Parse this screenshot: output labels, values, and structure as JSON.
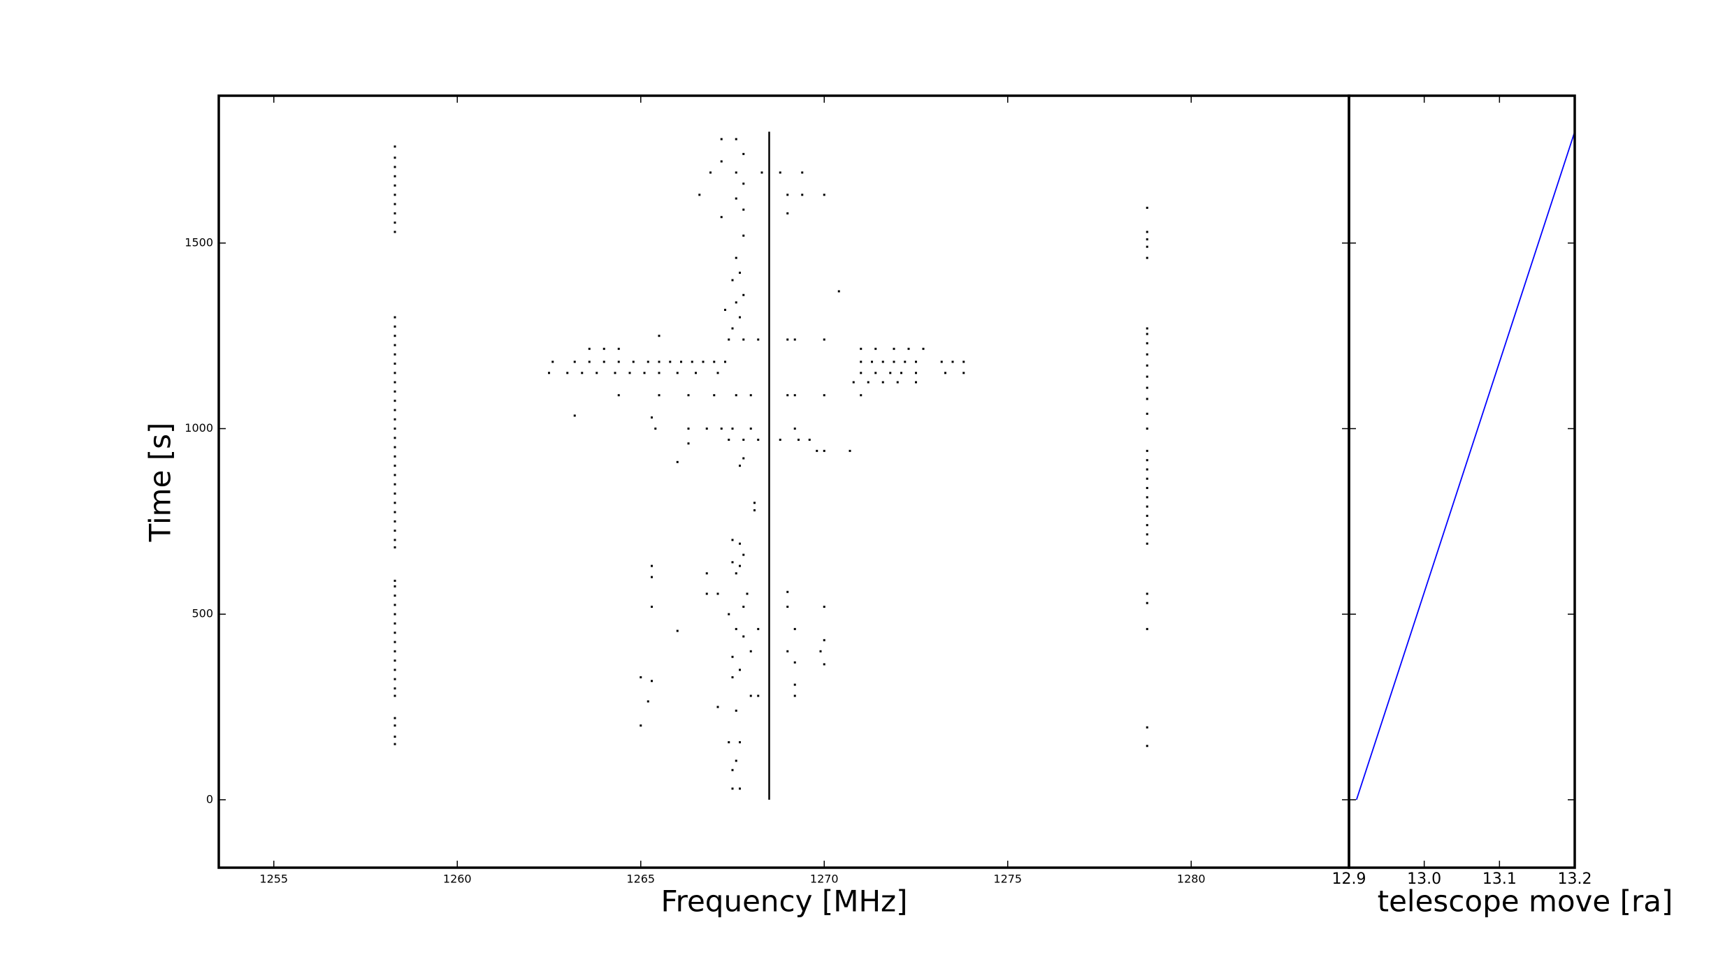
{
  "chart_data": [
    {
      "type": "scatter",
      "xlabel": "Frequency [MHz]",
      "ylabel": "Time [s]",
      "xlim": [
        1253.5,
        1284.3
      ],
      "ylim": [
        -183,
        1897
      ],
      "xticks": [
        1255,
        1260,
        1265,
        1270,
        1275,
        1280
      ],
      "yticks": [
        0,
        500,
        1000,
        1500
      ],
      "series": [
        {
          "color": "#000000",
          "x": [
            1258.3,
            1258.3,
            1258.3,
            1258.3,
            1258.3,
            1258.3,
            1258.3,
            1258.3,
            1258.3,
            1258.3,
            1258.3,
            1258.3,
            1258.3,
            1258.3,
            1258.3,
            1258.3,
            1258.3,
            1258.3,
            1258.3,
            1258.3,
            1258.3,
            1258.3,
            1258.3,
            1258.3,
            1258.3,
            1258.3,
            1258.3,
            1258.3,
            1258.3,
            1258.3,
            1258.3,
            1258.3,
            1258.3,
            1258.3,
            1258.3,
            1258.3,
            1258.3,
            1258.3,
            1258.3,
            1258.3,
            1258.3,
            1258.3,
            1258.3,
            1258.3,
            1258.3,
            1258.3,
            1258.3,
            1258.3,
            1258.3,
            1258.3,
            1258.3,
            1258.3,
            1258.3,
            1258.3
          ],
          "values": [
            150,
            170,
            200,
            220,
            280,
            300,
            325,
            350,
            375,
            400,
            425,
            450,
            475,
            500,
            525,
            550,
            575,
            590,
            680,
            700,
            725,
            750,
            775,
            800,
            825,
            850,
            875,
            900,
            925,
            950,
            975,
            1000,
            1025,
            1050,
            1075,
            1100,
            1125,
            1150,
            1175,
            1200,
            1225,
            1250,
            1275,
            1300,
            1530,
            1555,
            1580,
            1605,
            1630,
            1655,
            1680,
            1705,
            1730,
            1760
          ]
        },
        {
          "color": "#000000",
          "x": [
            1278.8,
            1278.8,
            1278.8,
            1278.8,
            1278.8,
            1278.8,
            1278.8,
            1278.8,
            1278.8,
            1278.8,
            1278.8,
            1278.8,
            1278.8,
            1278.8,
            1278.8,
            1278.8,
            1278.8,
            1278.8,
            1278.8,
            1278.8,
            1278.8,
            1278.8,
            1278.8,
            1278.8,
            1278.8,
            1278.8,
            1278.8,
            1278.8,
            1278.8,
            1278.8,
            1278.8
          ],
          "values": [
            145,
            195,
            460,
            530,
            555,
            690,
            715,
            740,
            765,
            790,
            815,
            840,
            865,
            890,
            915,
            940,
            1000,
            1040,
            1080,
            1110,
            1140,
            1170,
            1200,
            1230,
            1255,
            1270,
            1460,
            1490,
            1510,
            1530,
            1595
          ]
        },
        {
          "color": "#000000",
          "x": [
            1262.6,
            1263.2,
            1263.6,
            1264.0,
            1264.4,
            1264.8,
            1265.2,
            1265.5,
            1265.8,
            1266.1,
            1266.4,
            1266.7,
            1267.0,
            1267.3,
            1271.0,
            1271.3,
            1271.6,
            1271.9,
            1272.2,
            1272.5,
            1273.2,
            1273.5,
            1273.8
          ],
          "values": [
            1180,
            1180,
            1180,
            1180,
            1180,
            1180,
            1180,
            1180,
            1180,
            1180,
            1180,
            1180,
            1180,
            1180,
            1180,
            1180,
            1180,
            1180,
            1180,
            1180,
            1180,
            1180,
            1180
          ]
        },
        {
          "color": "#000000",
          "x": [
            1262.5,
            1263.0,
            1263.4,
            1263.8,
            1264.3,
            1264.7,
            1265.1,
            1265.5,
            1266.0,
            1266.5,
            1267.1,
            1271.0,
            1271.4,
            1271.8,
            1272.1,
            1272.5,
            1273.3,
            1273.8
          ],
          "values": [
            1150,
            1150,
            1150,
            1150,
            1150,
            1150,
            1150,
            1150,
            1150,
            1150,
            1150,
            1150,
            1150,
            1150,
            1150,
            1150,
            1150,
            1150
          ]
        },
        {
          "color": "#000000",
          "x": [
            1263.6,
            1264.0,
            1264.4,
            1271.0,
            1271.4,
            1271.9,
            1272.3,
            1272.7,
            1270.8,
            1271.2,
            1271.6,
            1272.0,
            1272.5
          ],
          "values": [
            1215,
            1215,
            1215,
            1215,
            1215,
            1215,
            1215,
            1215,
            1125,
            1125,
            1125,
            1125,
            1125
          ]
        },
        {
          "color": "#000000",
          "x": [
            1264.4,
            1265.5,
            1266.3,
            1267.0,
            1267.6,
            1268.0,
            1269.0,
            1269.2,
            1270.0,
            1271.0,
            1265.4,
            1266.3,
            1266.8,
            1267.2,
            1267.5,
            1268.0,
            1269.2,
            1267.4,
            1267.8,
            1268.2,
            1268.8,
            1269.3,
            1269.6,
            1269.8,
            1270.0,
            1270.7,
            1267.4,
            1267.8,
            1268.2,
            1269.0,
            1269.2,
            1270.0
          ],
          "values": [
            1090,
            1090,
            1090,
            1090,
            1090,
            1090,
            1090,
            1090,
            1090,
            1090,
            1000,
            1000,
            1000,
            1000,
            1000,
            1000,
            1000,
            970,
            970,
            970,
            970,
            970,
            970,
            940,
            940,
            940,
            1240,
            1240,
            1240,
            1240,
            1240,
            1240
          ]
        },
        {
          "color": "#000000",
          "x": [
            1267.5,
            1267.7,
            1267.5,
            1267.6,
            1267.4,
            1267.7,
            1267.1,
            1267.6,
            1268.0,
            1267.5,
            1267.7,
            1267.5,
            1267.8,
            1267.6,
            1267.4,
            1267.8,
            1266.8,
            1267.1,
            1267.9,
            1266.8,
            1267.6,
            1267.7,
            1267.5,
            1267.8,
            1267.5,
            1267.7,
            1268.1,
            1268.1,
            1267.7,
            1266.0,
            1267.8,
            1266.3,
            1265.3,
            1263.2,
            1267.5,
            1267.7,
            1267.3,
            1267.6,
            1267.8,
            1267.5,
            1267.7,
            1267.6,
            1267.8,
            1267.2,
            1267.8,
            1267.6,
            1266.6,
            1267.8,
            1267.6,
            1267.2,
            1267.8,
            1267.2,
            1267.6,
            1266.9,
            1268.3,
            1268.8,
            1269.4,
            1269.0,
            1269.4,
            1270.0,
            1269.0,
            1270.4,
            1265.5,
            1265.3,
            1265.3,
            1265.3,
            1266.0,
            1265.0,
            1265.3,
            1265.2,
            1265.0,
            1269.0,
            1269.0,
            1269.2,
            1269.0,
            1269.2,
            1269.2,
            1269.2,
            1270.0,
            1270.0,
            1269.9,
            1270.0,
            1268.2,
            1268.0,
            1268.2
          ],
          "values": [
            30,
            30,
            80,
            105,
            155,
            155,
            250,
            240,
            280,
            330,
            350,
            385,
            440,
            460,
            500,
            520,
            555,
            555,
            555,
            610,
            610,
            630,
            640,
            660,
            700,
            690,
            800,
            780,
            900,
            910,
            920,
            960,
            1030,
            1035,
            1270,
            1300,
            1320,
            1340,
            1360,
            1400,
            1420,
            1460,
            1520,
            1570,
            1590,
            1620,
            1630,
            1660,
            1690,
            1720,
            1740,
            1780,
            1780,
            1690,
            1690,
            1690,
            1690,
            1630,
            1630,
            1630,
            1580,
            1370,
            1250,
            600,
            630,
            520,
            455,
            330,
            320,
            265,
            200,
            560,
            520,
            460,
            400,
            370,
            310,
            280,
            520,
            430,
            400,
            365,
            460,
            400,
            280
          ]
        },
        {
          "type": "line",
          "color": "#000000",
          "x": [
            1268.5,
            1268.5
          ],
          "values": [
            0,
            1800
          ]
        }
      ]
    },
    {
      "type": "line",
      "xlabel": "telescope move [ra]",
      "xlim": [
        12.9,
        13.2
      ],
      "ylim": [
        -183,
        1897
      ],
      "xticks": [
        12.9,
        {
          "value": 13,
          "label": "13.0"
        },
        13.1,
        13.2
      ],
      "yticks": [
        0,
        500,
        1000,
        1500
      ],
      "ytick_labels": false,
      "series": [
        {
          "color": "#0000ff",
          "x": [
            12.91,
            13.2
          ],
          "values": [
            0,
            1800
          ]
        }
      ]
    }
  ]
}
